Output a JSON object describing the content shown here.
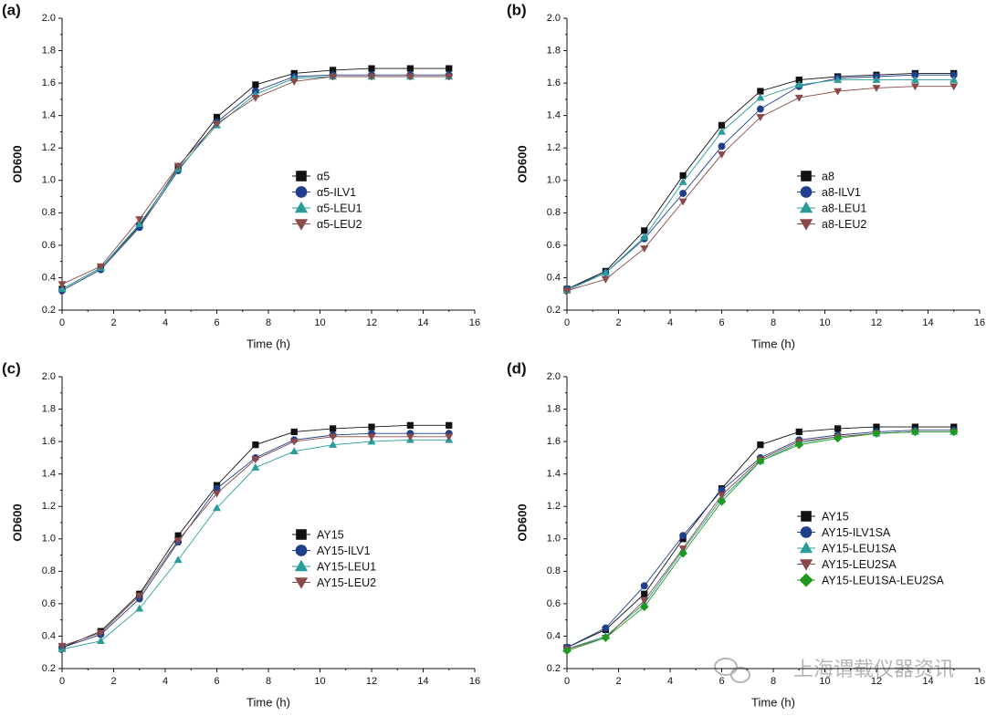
{
  "chart_data": [
    {
      "type": "line",
      "label": "(a)",
      "x_label": "Time (h)",
      "y_label": "OD600",
      "x": [
        0,
        1.5,
        3,
        4.5,
        6,
        7.5,
        9,
        10.5,
        12,
        13.5,
        15
      ],
      "xlim": [
        0,
        16
      ],
      "xticks": [
        0,
        2,
        4,
        6,
        8,
        10,
        12,
        14,
        16
      ],
      "ylim": [
        0.2,
        2.0
      ],
      "yticks": [
        0.2,
        0.4,
        0.6,
        0.8,
        {
          "value": 1,
          "label": "1.0"
        },
        1.2,
        1.4,
        1.6,
        1.8,
        {
          "value": 2,
          "label": "2.0"
        }
      ],
      "series": [
        {
          "name": "α5",
          "color": "#111111",
          "marker": "square",
          "values": [
            0.33,
            0.46,
            0.72,
            1.08,
            1.39,
            1.59,
            1.66,
            1.68,
            1.69,
            1.69,
            1.69
          ]
        },
        {
          "name": "α5-ILV1",
          "color": "#1f3f8a",
          "marker": "circle",
          "values": [
            0.32,
            0.45,
            0.71,
            1.06,
            1.36,
            1.55,
            1.64,
            1.65,
            1.65,
            1.65,
            1.65
          ]
        },
        {
          "name": "α5-LEU1",
          "color": "#2a9d9a",
          "marker": "triangle",
          "values": [
            0.33,
            0.46,
            0.73,
            1.07,
            1.34,
            1.53,
            1.63,
            1.64,
            1.64,
            1.64,
            1.64
          ]
        },
        {
          "name": "α5-LEU2",
          "color": "#8b4a4a",
          "marker": "triangle-down",
          "values": [
            0.36,
            0.47,
            0.76,
            1.09,
            1.35,
            1.51,
            1.61,
            1.64,
            1.64,
            1.64,
            1.64
          ]
        }
      ]
    },
    {
      "type": "line",
      "label": "(b)",
      "x_label": "Time (h)",
      "y_label": "OD600",
      "x": [
        0,
        1.5,
        3,
        4.5,
        6,
        7.5,
        9,
        10.5,
        12,
        13.5,
        15
      ],
      "xlim": [
        0,
        16
      ],
      "xticks": [
        0,
        2,
        4,
        6,
        8,
        10,
        12,
        14,
        16
      ],
      "ylim": [
        0.2,
        2.0
      ],
      "yticks": [
        0.2,
        0.4,
        0.6,
        0.8,
        {
          "value": 1,
          "label": "1.0"
        },
        1.2,
        1.4,
        1.6,
        1.8,
        {
          "value": 2,
          "label": "2.0"
        }
      ],
      "series": [
        {
          "name": "a8",
          "color": "#111111",
          "marker": "square",
          "values": [
            0.33,
            0.44,
            0.69,
            1.03,
            1.34,
            1.55,
            1.62,
            1.64,
            1.65,
            1.66,
            1.66
          ]
        },
        {
          "name": "a8-ILV1",
          "color": "#1f3f8a",
          "marker": "circle",
          "values": [
            0.33,
            0.43,
            0.64,
            0.92,
            1.21,
            1.44,
            1.58,
            1.63,
            1.64,
            1.65,
            1.65
          ]
        },
        {
          "name": "a8-LEU1",
          "color": "#2a9d9a",
          "marker": "triangle",
          "values": [
            0.32,
            0.43,
            0.65,
            0.99,
            1.3,
            1.51,
            1.59,
            1.62,
            1.62,
            1.62,
            1.62
          ]
        },
        {
          "name": "a8-LEU2",
          "color": "#8b4a4a",
          "marker": "triangle-down",
          "values": [
            0.32,
            0.39,
            0.58,
            0.87,
            1.16,
            1.39,
            1.51,
            1.55,
            1.57,
            1.58,
            1.58
          ]
        }
      ]
    },
    {
      "type": "line",
      "label": "(c)",
      "x_label": "Time (h)",
      "y_label": "OD600",
      "x": [
        0,
        1.5,
        3,
        4.5,
        6,
        7.5,
        9,
        10.5,
        12,
        13.5,
        15
      ],
      "xlim": [
        0,
        16
      ],
      "xticks": [
        0,
        2,
        4,
        6,
        8,
        10,
        12,
        14,
        16
      ],
      "ylim": [
        0.2,
        2.0
      ],
      "yticks": [
        0.2,
        0.4,
        0.6,
        0.8,
        {
          "value": 1,
          "label": "1.0"
        },
        1.2,
        1.4,
        1.6,
        1.8,
        {
          "value": 2,
          "label": "2.0"
        }
      ],
      "series": [
        {
          "name": "AY15",
          "color": "#111111",
          "marker": "square",
          "values": [
            0.33,
            0.43,
            0.66,
            1.02,
            1.33,
            1.58,
            1.66,
            1.68,
            1.69,
            1.7,
            1.7
          ]
        },
        {
          "name": "AY15-ILV1",
          "color": "#1f3f8a",
          "marker": "circle",
          "values": [
            0.33,
            0.41,
            0.63,
            0.98,
            1.31,
            1.5,
            1.61,
            1.64,
            1.65,
            1.65,
            1.65
          ]
        },
        {
          "name": "AY15-LEU1",
          "color": "#2a9d9a",
          "marker": "triangle",
          "values": [
            0.32,
            0.37,
            0.57,
            0.87,
            1.19,
            1.44,
            1.54,
            1.58,
            1.6,
            1.61,
            1.61
          ]
        },
        {
          "name": "AY15-LEU2",
          "color": "#8b4a4a",
          "marker": "triangle-down",
          "values": [
            0.34,
            0.42,
            0.65,
            0.99,
            1.28,
            1.49,
            1.6,
            1.63,
            1.63,
            1.63,
            1.63
          ]
        }
      ]
    },
    {
      "type": "line",
      "label": "(d)",
      "x_label": "Time (h)",
      "y_label": "OD600",
      "x": [
        0,
        1.5,
        3,
        4.5,
        6,
        7.5,
        9,
        10.5,
        12,
        13.5,
        15
      ],
      "xlim": [
        0,
        16
      ],
      "xticks": [
        0,
        2,
        4,
        6,
        8,
        10,
        12,
        14,
        16
      ],
      "ylim": [
        0.2,
        2.0
      ],
      "yticks": [
        0.2,
        0.4,
        0.6,
        0.8,
        {
          "value": 1,
          "label": "1.0"
        },
        1.2,
        1.4,
        1.6,
        1.8,
        {
          "value": 2,
          "label": "2.0"
        }
      ],
      "series": [
        {
          "name": "AY15",
          "color": "#111111",
          "marker": "square",
          "values": [
            0.33,
            0.44,
            0.66,
            1.0,
            1.31,
            1.58,
            1.66,
            1.68,
            1.69,
            1.69,
            1.69
          ]
        },
        {
          "name": "AY15-ILV1SA",
          "color": "#1f3f8a",
          "marker": "circle",
          "values": [
            0.33,
            0.45,
            0.71,
            1.02,
            1.3,
            1.5,
            1.61,
            1.64,
            1.66,
            1.67,
            1.67
          ]
        },
        {
          "name": "AY15-LEU1SA",
          "color": "#2a9d9a",
          "marker": "triangle",
          "values": [
            0.32,
            0.4,
            0.6,
            0.93,
            1.25,
            1.48,
            1.59,
            1.63,
            1.65,
            1.66,
            1.66
          ]
        },
        {
          "name": "AY15-LEU2SA",
          "color": "#8b4a4a",
          "marker": "triangle-down",
          "values": [
            0.32,
            0.39,
            0.62,
            0.94,
            1.27,
            1.49,
            1.6,
            1.63,
            1.65,
            1.66,
            1.66
          ]
        },
        {
          "name": "AY15-LEU1SA-LEU2SA",
          "color": "#1f9a1f",
          "marker": "diamond",
          "values": [
            0.31,
            0.39,
            0.58,
            0.91,
            1.23,
            1.48,
            1.58,
            1.62,
            1.65,
            1.66,
            1.66
          ]
        }
      ]
    }
  ],
  "watermark": "上海谓载仪器资讯"
}
